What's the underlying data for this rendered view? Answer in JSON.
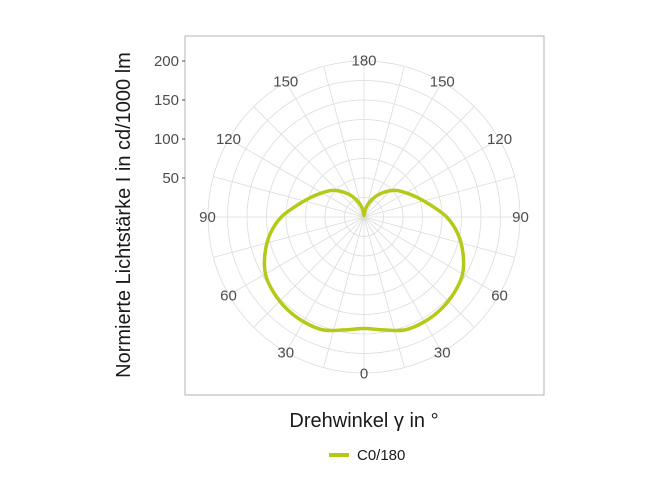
{
  "chart_data": {
    "type": "polar-line",
    "ylabel": "Normierte Lichtstärke I in cd/1000 lm",
    "xlabel": "Drehwinkel γ in °",
    "radial_ticks": [
      "50",
      "100",
      "150",
      "200"
    ],
    "radial_max": 200,
    "angle_ticks": [
      {
        "angle": 180,
        "label": "180"
      },
      {
        "angle": 150,
        "label": "150"
      },
      {
        "angle": 120,
        "label": "120"
      },
      {
        "angle": 90,
        "label": "90"
      },
      {
        "angle": 60,
        "label": "60"
      },
      {
        "angle": 30,
        "label": "30"
      },
      {
        "angle": 0,
        "label": "0"
      },
      {
        "angle": -30,
        "label": "30"
      },
      {
        "angle": -60,
        "label": "60"
      },
      {
        "angle": -90,
        "label": "90"
      },
      {
        "angle": -120,
        "label": "120"
      },
      {
        "angle": -150,
        "label": "150"
      },
      {
        "angle": -180,
        "label": "180"
      }
    ],
    "series": [
      {
        "name": "C0/180",
        "color": "#b5c918",
        "gamma": [
          0,
          10,
          20,
          30,
          40,
          50,
          60,
          70,
          80,
          90,
          100,
          110,
          120,
          130,
          140,
          150,
          160,
          170,
          180
        ],
        "intensity": [
          143,
          147,
          154,
          155,
          154,
          151,
          146,
          135,
          122,
          106,
          87,
          73,
          62,
          53,
          42,
          31,
          20,
          10,
          2
        ]
      }
    ],
    "legend_position": "bottom"
  }
}
